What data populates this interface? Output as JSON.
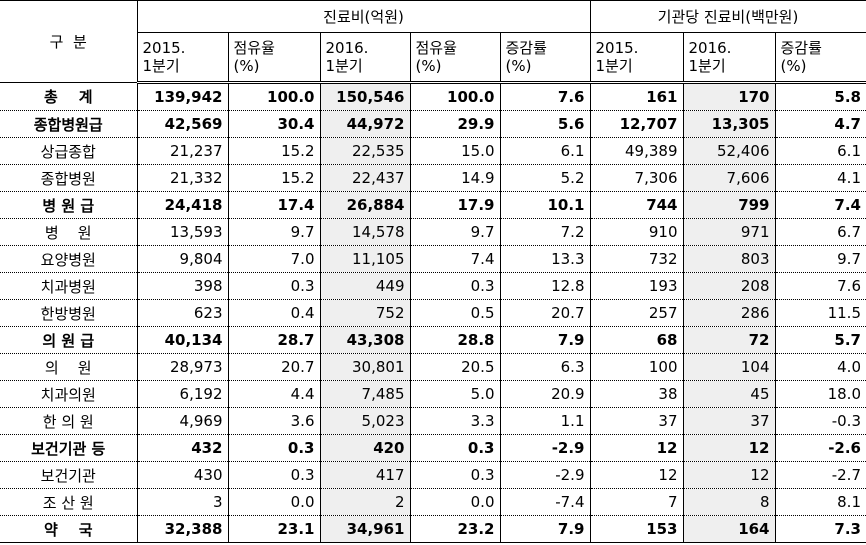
{
  "header": {
    "category": "구  분",
    "group1": "진료비(억원)",
    "group2": "기관당 진료비(백만원)",
    "columns": [
      "2015.\n1분기",
      "점유율\n(%)",
      "2016.\n1분기",
      "점유율\n(%)",
      "증감률\n(%)",
      "2015.\n1분기",
      "2016.\n1분기",
      "증감률\n(%)"
    ]
  },
  "table": {
    "rows": [
      {
        "label": "총    계",
        "bold": true,
        "cells": [
          "139,942",
          "100.0",
          "150,546",
          "100.0",
          "7.6",
          "161",
          "170",
          "5.8"
        ]
      },
      {
        "label": "종합병원급",
        "bold": true,
        "cells": [
          "42,569",
          "30.4",
          "44,972",
          "29.9",
          "5.6",
          "12,707",
          "13,305",
          "4.7"
        ]
      },
      {
        "label": "상급종합",
        "bold": false,
        "cells": [
          "21,237",
          "15.2",
          "22,535",
          "15.0",
          "6.1",
          "49,389",
          "52,406",
          "6.1"
        ]
      },
      {
        "label": "종합병원",
        "bold": false,
        "cells": [
          "21,332",
          "15.2",
          "22,437",
          "14.9",
          "5.2",
          "7,306",
          "7,606",
          "4.1"
        ]
      },
      {
        "label": "병 원 급",
        "bold": true,
        "cells": [
          "24,418",
          "17.4",
          "26,884",
          "17.9",
          "10.1",
          "744",
          "799",
          "7.4"
        ]
      },
      {
        "label": "병    원",
        "bold": false,
        "cells": [
          "13,593",
          "9.7",
          "14,578",
          "9.7",
          "7.2",
          "910",
          "971",
          "6.7"
        ]
      },
      {
        "label": "요양병원",
        "bold": false,
        "cells": [
          "9,804",
          "7.0",
          "11,105",
          "7.4",
          "13.3",
          "732",
          "803",
          "9.7"
        ]
      },
      {
        "label": "치과병원",
        "bold": false,
        "cells": [
          "398",
          "0.3",
          "449",
          "0.3",
          "12.8",
          "193",
          "208",
          "7.6"
        ]
      },
      {
        "label": "한방병원",
        "bold": false,
        "cells": [
          "623",
          "0.4",
          "752",
          "0.5",
          "20.7",
          "257",
          "286",
          "11.5"
        ]
      },
      {
        "label": "의 원 급",
        "bold": true,
        "cells": [
          "40,134",
          "28.7",
          "43,308",
          "28.8",
          "7.9",
          "68",
          "72",
          "5.7"
        ]
      },
      {
        "label": "의    원",
        "bold": false,
        "cells": [
          "28,973",
          "20.7",
          "30,801",
          "20.5",
          "6.3",
          "100",
          "104",
          "4.0"
        ]
      },
      {
        "label": "치과의원",
        "bold": false,
        "cells": [
          "6,192",
          "4.4",
          "7,485",
          "5.0",
          "20.9",
          "38",
          "45",
          "18.0"
        ]
      },
      {
        "label": "한 의 원",
        "bold": false,
        "cells": [
          "4,969",
          "3.6",
          "5,023",
          "3.3",
          "1.1",
          "37",
          "37",
          "-0.3"
        ]
      },
      {
        "label": "보건기관 등",
        "bold": true,
        "cells": [
          "432",
          "0.3",
          "420",
          "0.3",
          "-2.9",
          "12",
          "12",
          "-2.6"
        ]
      },
      {
        "label": "보건기관",
        "bold": false,
        "cells": [
          "430",
          "0.3",
          "417",
          "0.3",
          "-2.9",
          "12",
          "12",
          "-2.7"
        ]
      },
      {
        "label": "조 산 원",
        "bold": false,
        "cells": [
          "3",
          "0.0",
          "2",
          "0.0",
          "-7.4",
          "7",
          "8",
          "8.1"
        ]
      },
      {
        "label": "약    국",
        "bold": true,
        "cells": [
          "32,388",
          "23.1",
          "34,961",
          "23.2",
          "7.9",
          "153",
          "164",
          "7.3"
        ]
      }
    ]
  }
}
